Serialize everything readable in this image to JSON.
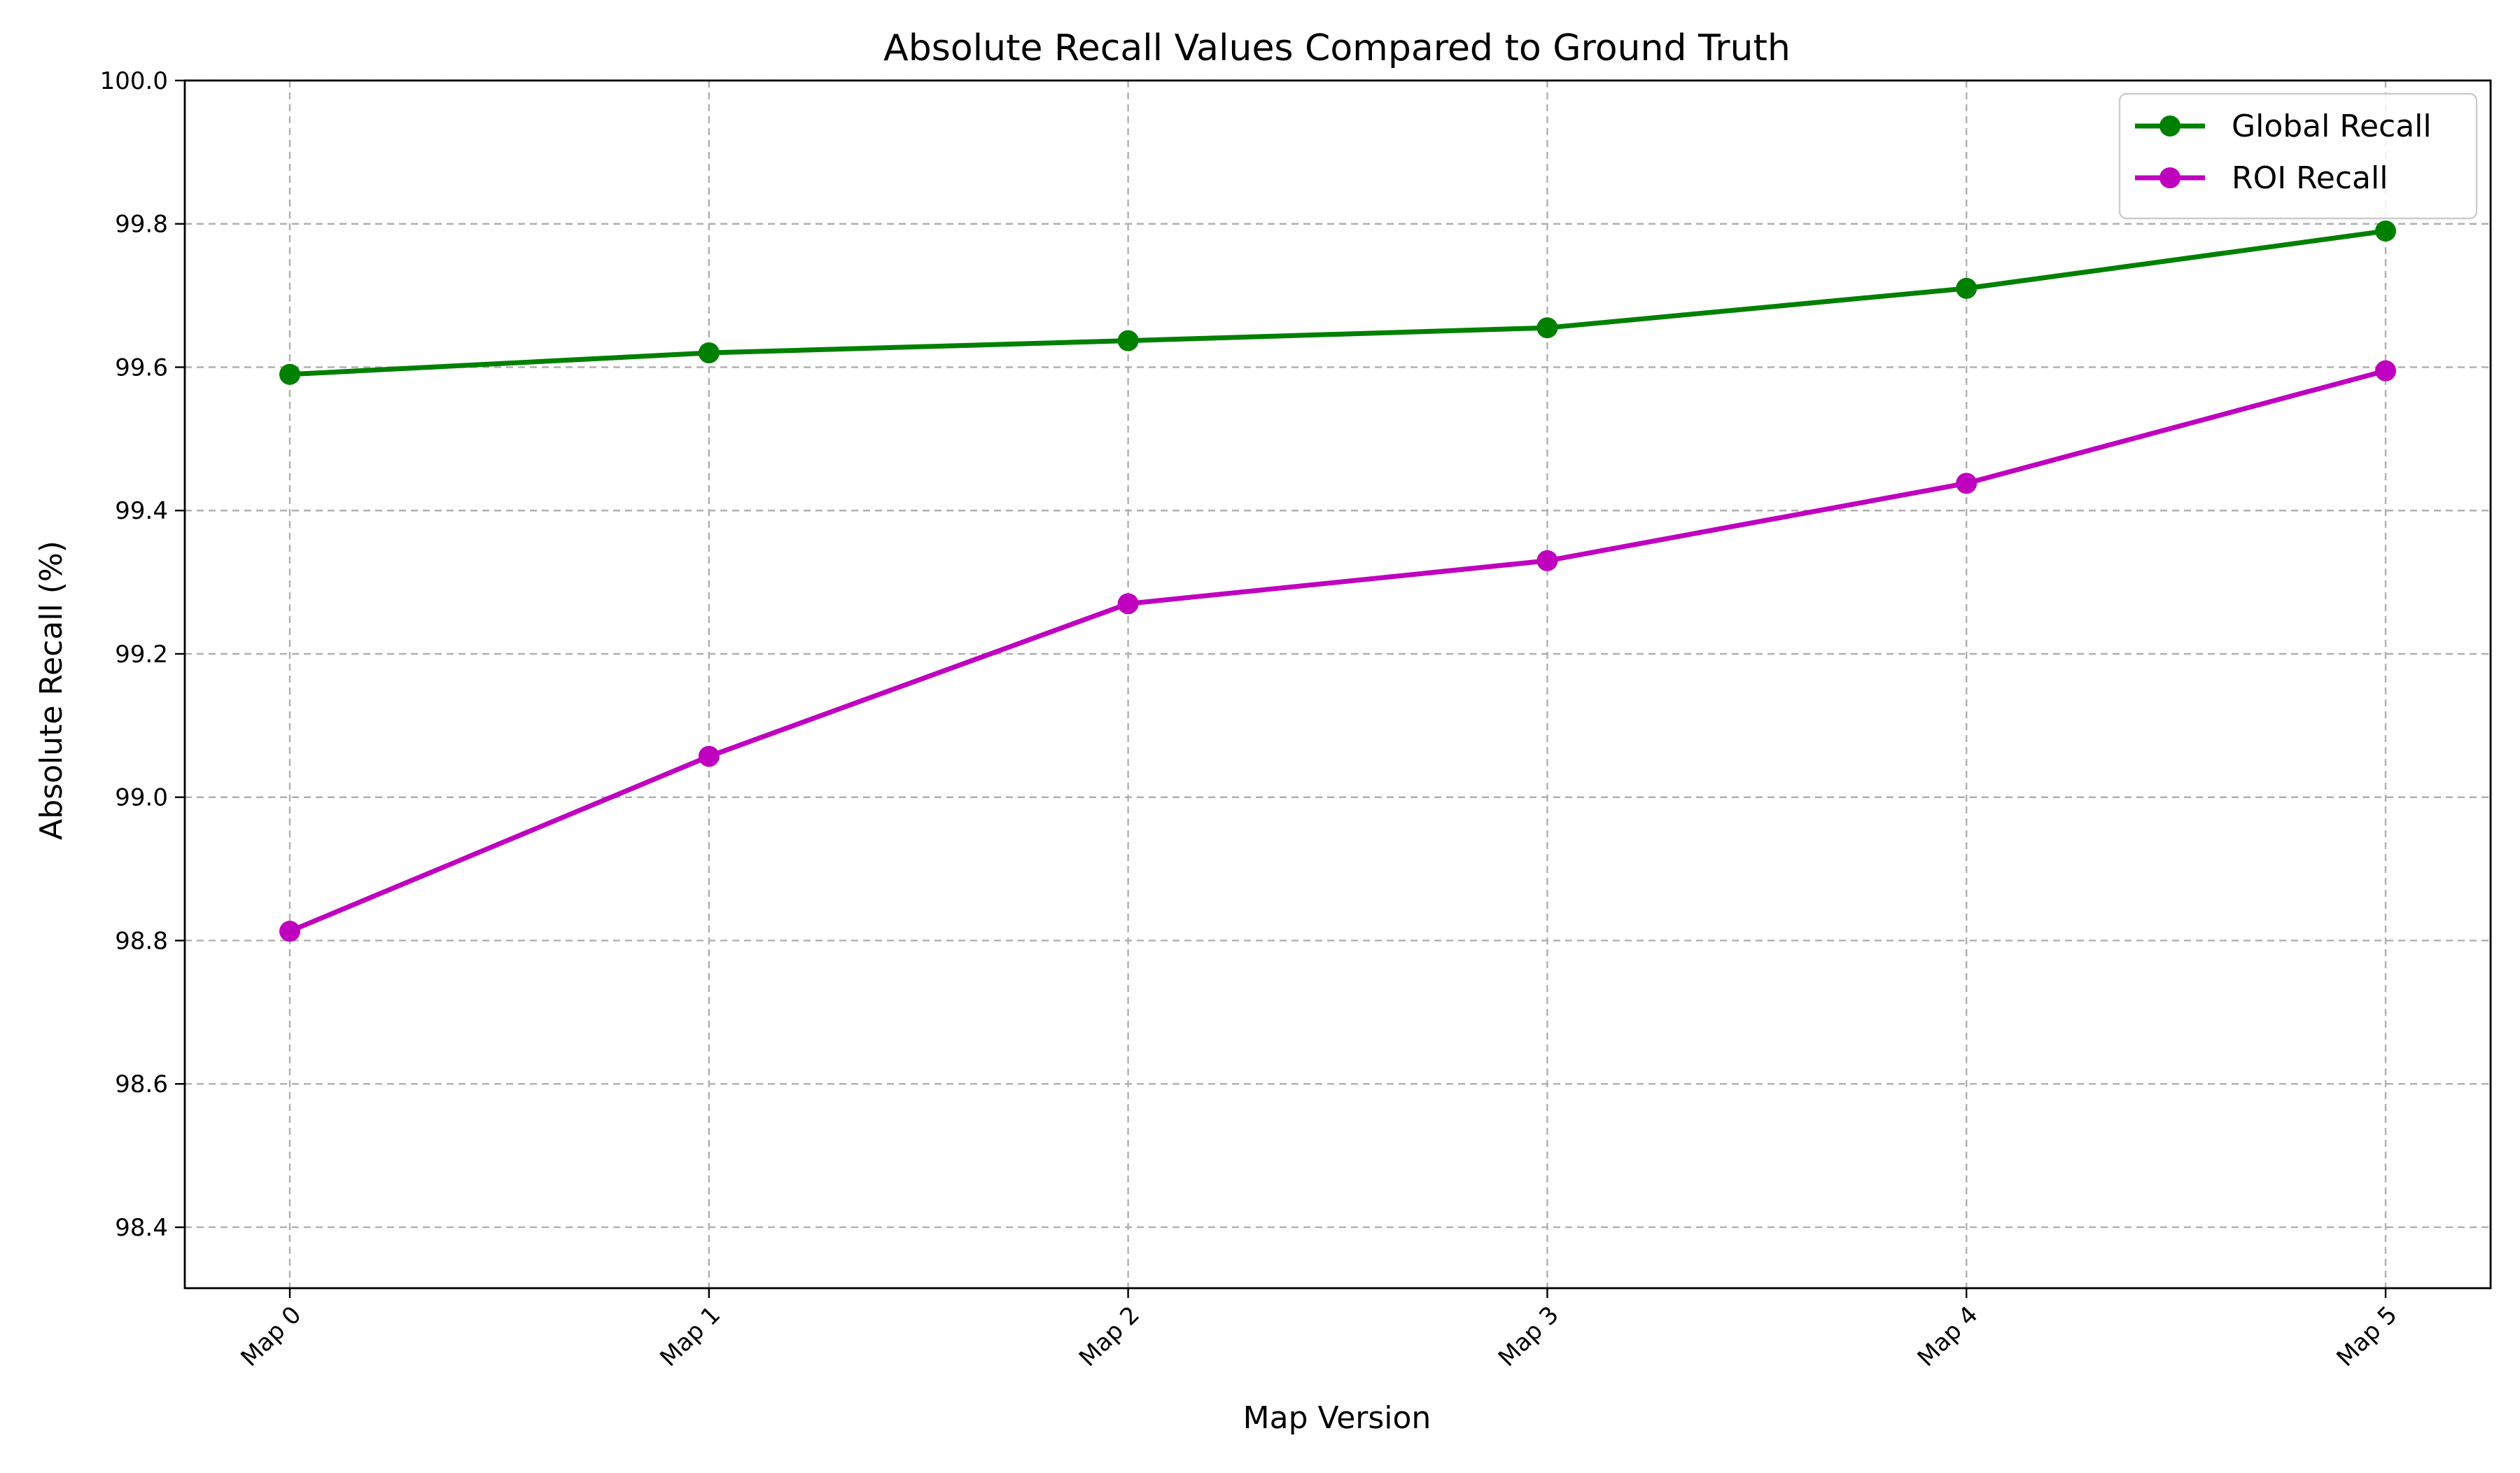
{
  "chart_data": {
    "type": "line",
    "title": "Absolute Recall Values Compared to Ground Truth",
    "xlabel": "Map Version",
    "ylabel": "Absolute Recall (%)",
    "categories": [
      "Map 0",
      "Map 1",
      "Map 2",
      "Map 3",
      "Map 4",
      "Map 5"
    ],
    "series": [
      {
        "name": "Global Recall",
        "color": "#008000",
        "marker": "circle",
        "values": [
          99.59,
          99.62,
          99.637,
          99.655,
          99.71,
          99.79
        ]
      },
      {
        "name": "ROI Recall",
        "color": "#bf00bf",
        "marker": "circle",
        "values": [
          98.813,
          99.057,
          99.27,
          99.33,
          99.438,
          99.595
        ]
      }
    ],
    "ylim": [
      98.315,
      100.0
    ],
    "yticks": [
      "98.4",
      "98.6",
      "98.8",
      "99.0",
      "99.2",
      "99.4",
      "99.6",
      "99.8",
      "100.0"
    ],
    "x_tick_rotation": "45 degrees",
    "grid": true,
    "grid_style": "dashed",
    "legend_position": "upper right"
  }
}
